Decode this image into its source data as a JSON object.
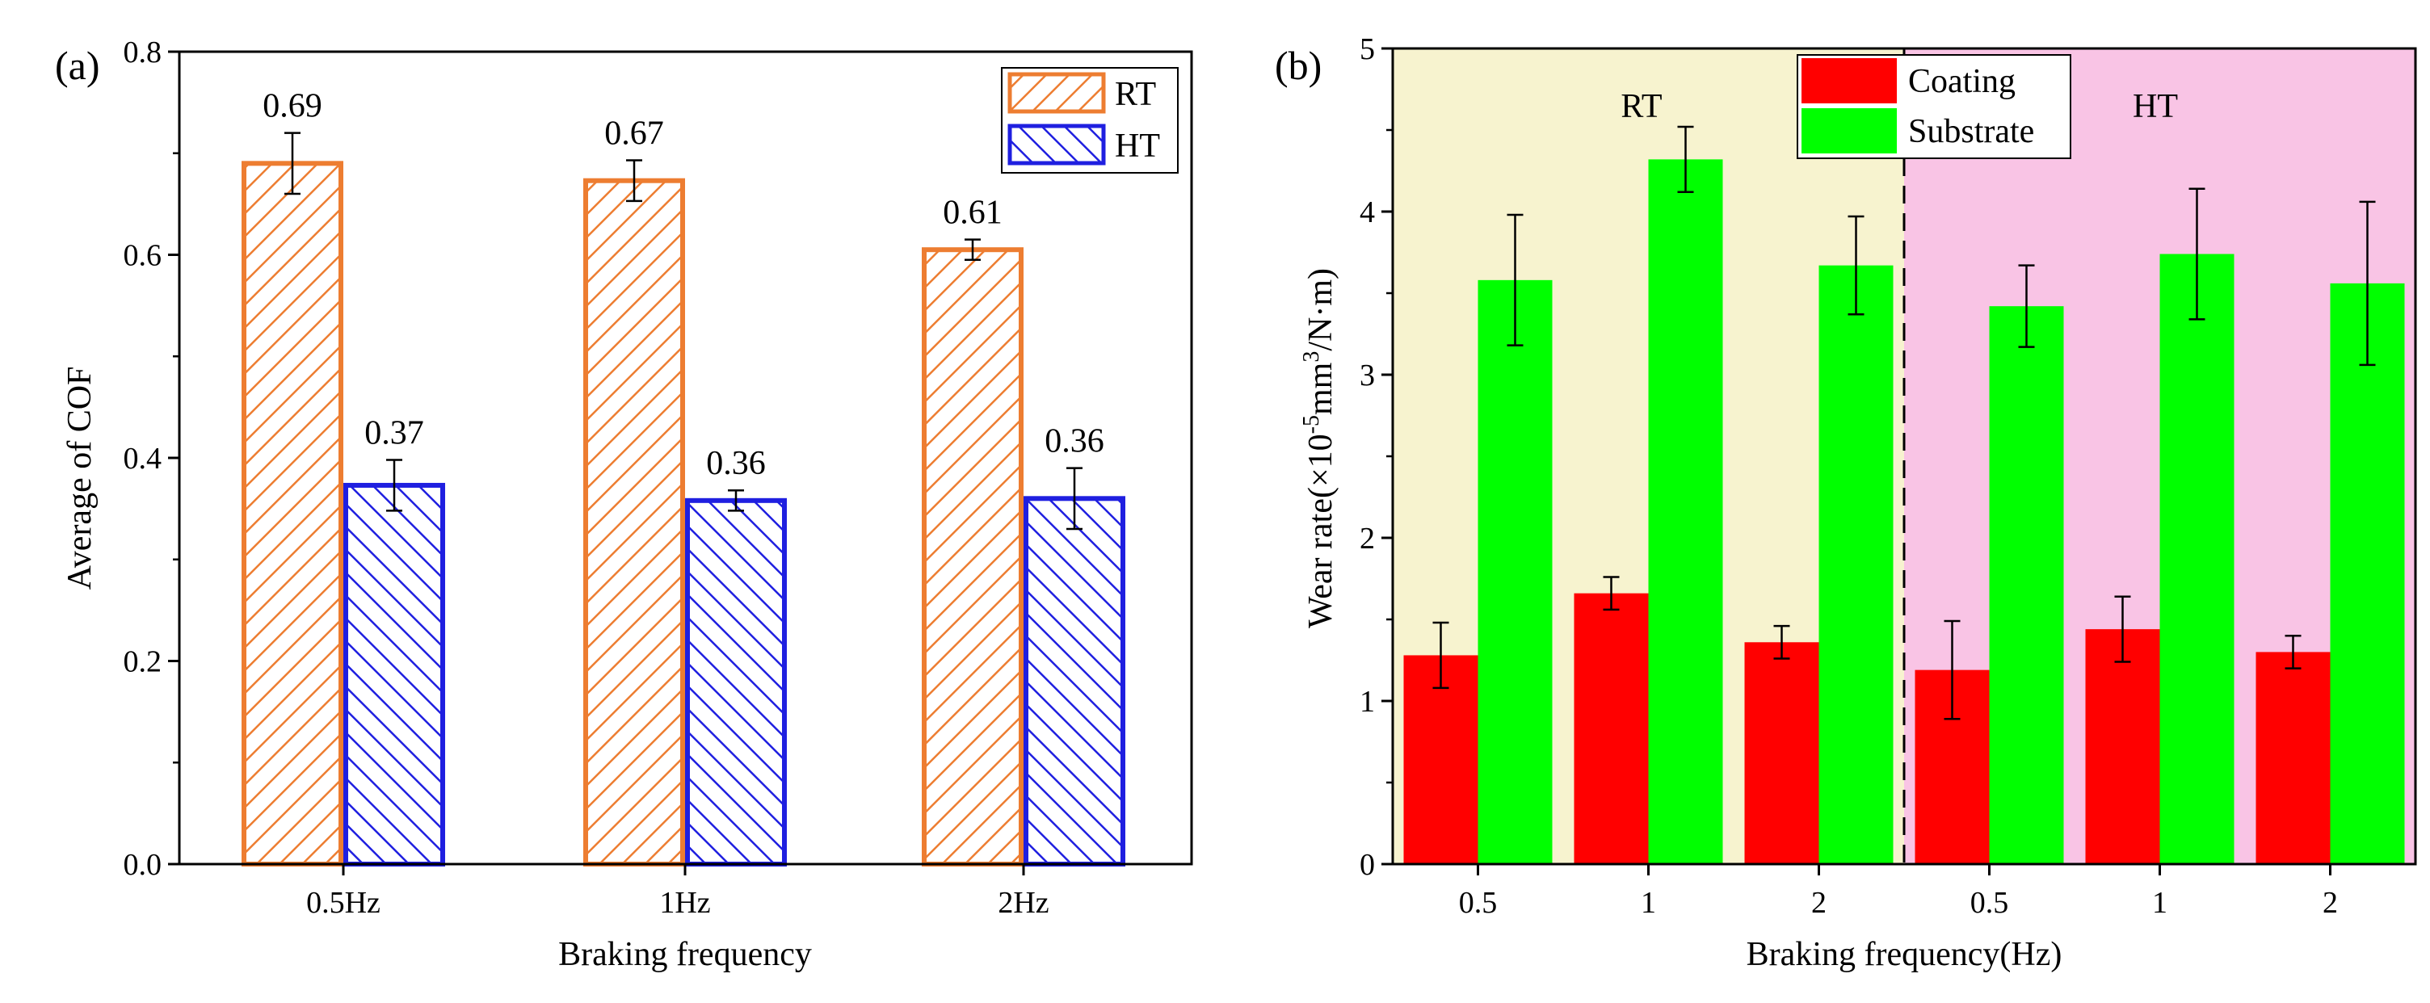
{
  "chart_data": [
    {
      "id": "a",
      "type": "bar",
      "panel_label": "(a)",
      "xlabel": "Braking frequency",
      "ylabel": "Average of COF",
      "categories": [
        "0.5Hz",
        "1Hz",
        "2Hz"
      ],
      "ylim": [
        0,
        0.8
      ],
      "yticks": [
        "0.0",
        "0.2",
        "0.4",
        "0.6",
        "0.8"
      ],
      "legend_position": "top-right",
      "series": [
        {
          "name": "RT",
          "color": "#ED7D31",
          "pattern": "hatch-forward",
          "values": [
            0.69,
            0.673,
            0.605
          ],
          "errors": [
            0.03,
            0.02,
            0.01
          ],
          "labels": [
            "0.69",
            "0.67",
            "0.61"
          ]
        },
        {
          "name": "HT",
          "color": "#1F1FE0",
          "pattern": "hatch-backward",
          "values": [
            0.373,
            0.358,
            0.36
          ],
          "errors": [
            0.025,
            0.01,
            0.03
          ],
          "labels": [
            "0.37",
            "0.36",
            "0.36"
          ]
        }
      ]
    },
    {
      "id": "b",
      "type": "bar",
      "panel_label": "(b)",
      "xlabel": "Braking frequency(Hz)",
      "ylabel_parts": {
        "main": "Wear rate(×10",
        "exp1": "-5",
        "mid": "mm",
        "exp2": "3",
        "tail": "/N·m)"
      },
      "categories": [
        "0.5",
        "1",
        "2",
        "0.5",
        "1",
        "2"
      ],
      "ylim": [
        0,
        5
      ],
      "yticks": [
        "0",
        "1",
        "2",
        "3",
        "4",
        "5"
      ],
      "legend_position": "top-center",
      "regions": [
        {
          "label": "RT",
          "color": "#F7F3CF",
          "from": 0,
          "to": 3
        },
        {
          "label": "HT",
          "color": "#F9C4E5",
          "from": 3,
          "to": 6
        }
      ],
      "series": [
        {
          "name": "Coating",
          "color": "#FF0000",
          "values": [
            1.28,
            1.66,
            1.36,
            1.19,
            1.44,
            1.3
          ],
          "errors": [
            0.2,
            0.1,
            0.1,
            0.3,
            0.2,
            0.1
          ]
        },
        {
          "name": "Substrate",
          "color": "#00FF00",
          "values": [
            3.58,
            4.32,
            3.67,
            3.42,
            3.74,
            3.56
          ],
          "errors": [
            0.4,
            0.2,
            0.3,
            0.25,
            0.4,
            0.5
          ]
        }
      ]
    }
  ]
}
